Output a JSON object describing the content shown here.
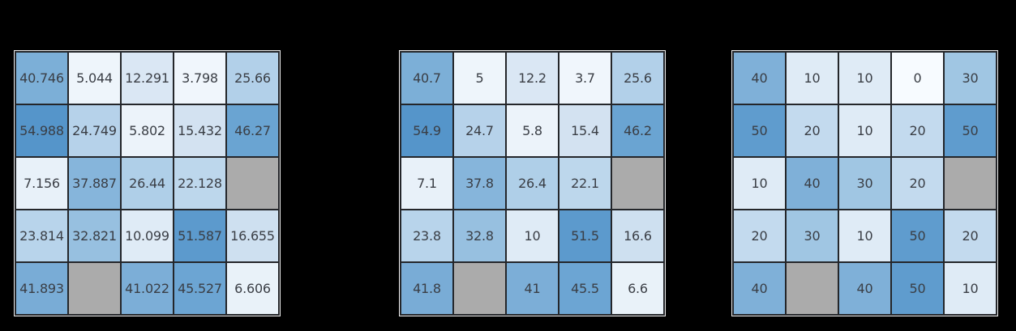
{
  "figure": {
    "background": "#000000"
  },
  "palette": {
    "grid_line": "#24262a",
    "outer_edge": "#ededed",
    "text": "#3a3e45",
    "missing_cell": "#ababab",
    "colormap_low": "#f7fbff",
    "colormap_high": "#5595ca"
  },
  "chart_data": [
    {
      "type": "heatmap",
      "name": "values-3-decimals",
      "rows": 5,
      "cols": 5,
      "labels": [
        [
          "40.746",
          "5.044",
          "12.291",
          "3.798",
          "25.66"
        ],
        [
          "54.988",
          "24.749",
          "5.802",
          "15.432",
          "46.27"
        ],
        [
          "7.156",
          "37.887",
          "26.44",
          "22.128",
          ""
        ],
        [
          "23.814",
          "32.821",
          "10.099",
          "51.587",
          "16.655"
        ],
        [
          "41.893",
          "",
          "41.022",
          "45.527",
          "6.606"
        ]
      ],
      "values": [
        [
          40.746,
          5.044,
          12.291,
          3.798,
          25.66
        ],
        [
          54.988,
          24.749,
          5.802,
          15.432,
          46.27
        ],
        [
          7.156,
          37.887,
          26.44,
          22.128,
          null
        ],
        [
          23.814,
          32.821,
          10.099,
          51.587,
          16.655
        ],
        [
          41.893,
          null,
          41.022,
          45.527,
          6.606
        ]
      ],
      "colors": [
        [
          "#7cafd7",
          "#eef5fb",
          "#dae7f4",
          "#f0f6fc",
          "#b2d0e9"
        ],
        [
          "#5595ca",
          "#b6d2ea",
          "#ecf3fa",
          "#d3e2f1",
          "#6aa4d2"
        ],
        [
          "#e8f1f9",
          "#86b5db",
          "#afcfe8",
          "#bdd7ec",
          "#ababab"
        ],
        [
          "#b8d4eb",
          "#97c0e0",
          "#dfebf6",
          "#5c9acd",
          "#cee0f0"
        ],
        [
          "#79acd6",
          "#ababab",
          "#7caed7",
          "#6ca5d3",
          "#e9f2f9"
        ]
      ]
    },
    {
      "type": "heatmap",
      "name": "values-1-decimal",
      "rows": 5,
      "cols": 5,
      "labels": [
        [
          "40.7",
          "5",
          "12.2",
          "3.7",
          "25.6"
        ],
        [
          "54.9",
          "24.7",
          "5.8",
          "15.4",
          "46.2"
        ],
        [
          "7.1",
          "37.8",
          "26.4",
          "22.1",
          ""
        ],
        [
          "23.8",
          "32.8",
          "10",
          "51.5",
          "16.6"
        ],
        [
          "41.8",
          "",
          "41",
          "45.5",
          "6.6"
        ]
      ],
      "values": [
        [
          40.7,
          5,
          12.2,
          3.7,
          25.6
        ],
        [
          54.9,
          24.7,
          5.8,
          15.4,
          46.2
        ],
        [
          7.1,
          37.8,
          26.4,
          22.1,
          null
        ],
        [
          23.8,
          32.8,
          10,
          51.5,
          16.6
        ],
        [
          41.8,
          null,
          41,
          45.5,
          6.6
        ]
      ],
      "colors": [
        [
          "#7cafd7",
          "#eef5fb",
          "#dae7f4",
          "#f0f6fc",
          "#b2d0e9"
        ],
        [
          "#5595ca",
          "#b6d2ea",
          "#ecf3fa",
          "#d3e2f1",
          "#6aa4d2"
        ],
        [
          "#e8f1f9",
          "#86b5db",
          "#afcfe8",
          "#bdd7ec",
          "#ababab"
        ],
        [
          "#b8d4eb",
          "#97c0e0",
          "#dfebf6",
          "#5c9acd",
          "#cee0f0"
        ],
        [
          "#79acd6",
          "#ababab",
          "#7caed7",
          "#6ca5d3",
          "#e9f2f9"
        ]
      ]
    },
    {
      "type": "heatmap",
      "name": "values-rounded-tens",
      "rows": 5,
      "cols": 5,
      "labels": [
        [
          "40",
          "10",
          "10",
          "0",
          "30"
        ],
        [
          "50",
          "20",
          "10",
          "20",
          "50"
        ],
        [
          "10",
          "40",
          "30",
          "20",
          ""
        ],
        [
          "20",
          "30",
          "10",
          "50",
          "20"
        ],
        [
          "40",
          "",
          "40",
          "50",
          "10"
        ]
      ],
      "values": [
        [
          40,
          10,
          10,
          0,
          30
        ],
        [
          50,
          20,
          10,
          20,
          50
        ],
        [
          10,
          40,
          30,
          20,
          null
        ],
        [
          20,
          30,
          10,
          50,
          20
        ],
        [
          40,
          null,
          40,
          50,
          10
        ]
      ],
      "colors": [
        [
          "#7fb0d8",
          "#dfebf6",
          "#dfebf6",
          "#f7fbff",
          "#a0c6e3"
        ],
        [
          "#5f9cce",
          "#c3daee",
          "#dfebf6",
          "#c3daee",
          "#5f9cce"
        ],
        [
          "#dfebf6",
          "#7fb0d8",
          "#a0c6e3",
          "#c3daee",
          "#ababab"
        ],
        [
          "#c3daee",
          "#a0c6e3",
          "#dfebf6",
          "#5f9cce",
          "#c3daee"
        ],
        [
          "#7fb0d8",
          "#ababab",
          "#7fb0d8",
          "#5f9cce",
          "#dfebf6"
        ]
      ]
    }
  ]
}
